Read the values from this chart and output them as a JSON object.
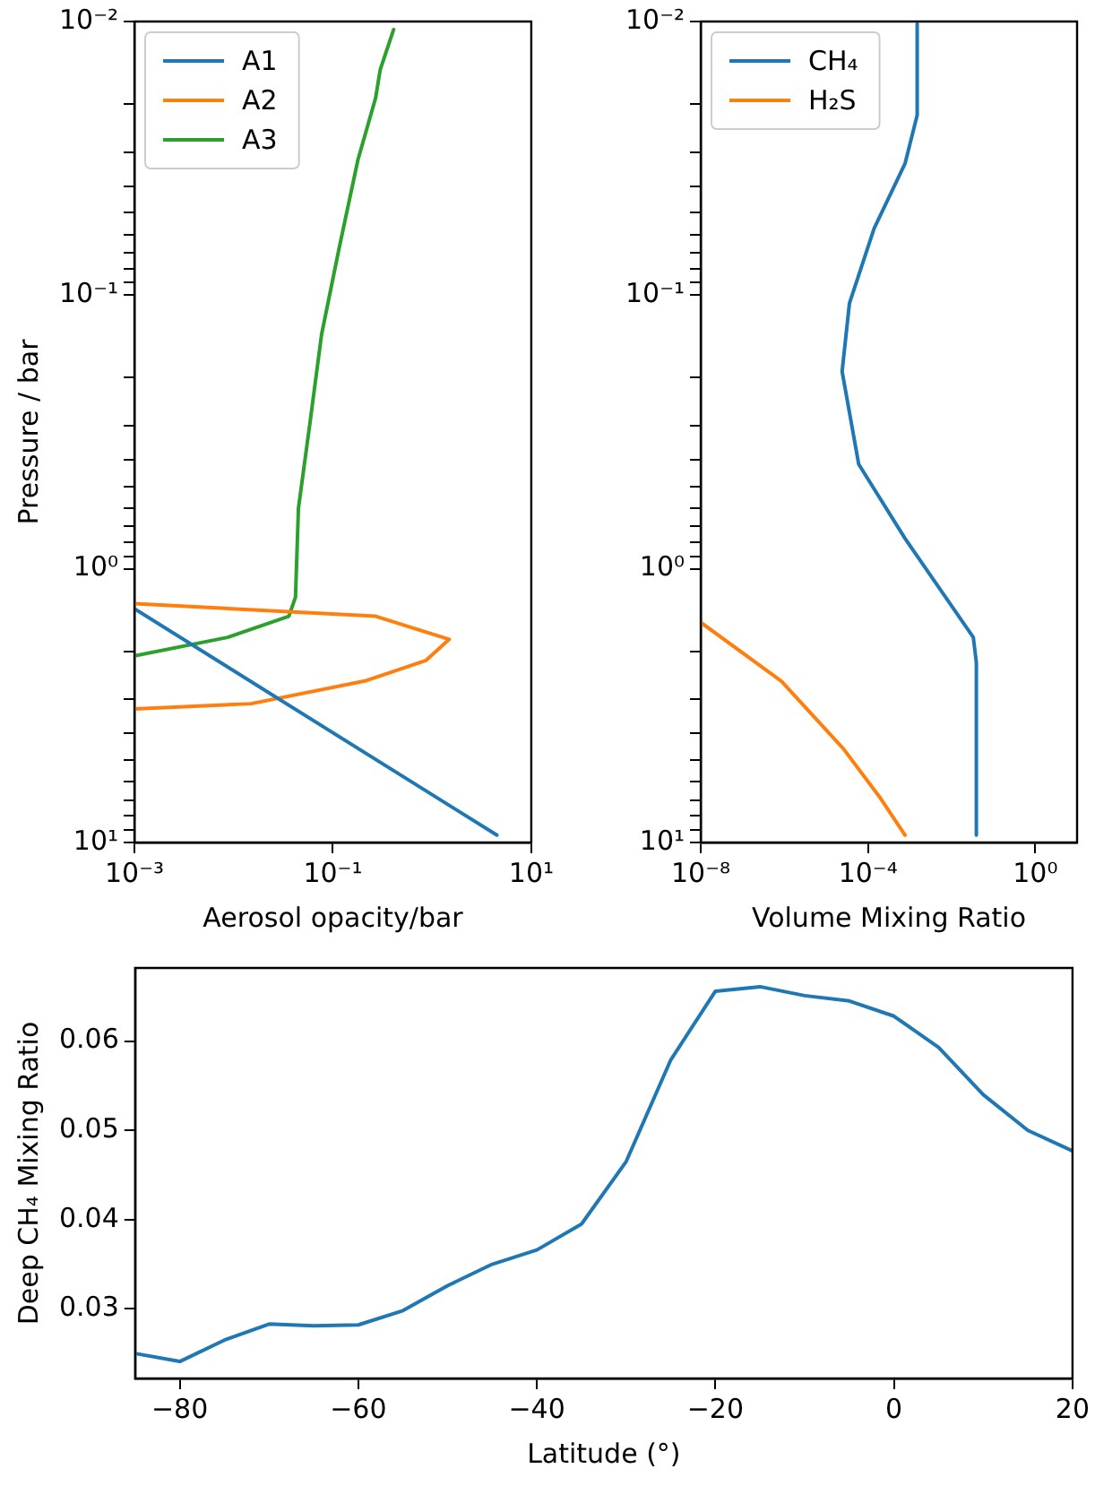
{
  "chart_data": [
    {
      "type": "line",
      "xlabel": "Aerosol opacity/bar",
      "ylabel": "Pressure / bar",
      "log": "xy",
      "legend": "top left",
      "marker": "none",
      "grid": false,
      "xlim": [
        0.001,
        10
      ],
      "xticks": [
        {
          "value": 0.001,
          "label": "10⁻³"
        },
        {
          "value": 0.1,
          "label": "10⁻¹"
        },
        {
          "value": 10,
          "label": "10¹"
        }
      ],
      "ylim": [
        10,
        0.01
      ],
      "yticks": [
        {
          "value": 0.01,
          "label": "10⁻²"
        },
        {
          "value": 0.02,
          "label": null
        },
        {
          "value": 0.03,
          "label": null
        },
        {
          "value": 0.04,
          "label": null
        },
        {
          "value": 0.05,
          "label": null
        },
        {
          "value": 0.06,
          "label": null
        },
        {
          "value": 0.07,
          "label": null
        },
        {
          "value": 0.08,
          "label": null
        },
        {
          "value": 0.09,
          "label": null
        },
        {
          "value": 0.1,
          "label": "10⁻¹"
        },
        {
          "value": 0.2,
          "label": null
        },
        {
          "value": 0.3,
          "label": null
        },
        {
          "value": 0.4,
          "label": null
        },
        {
          "value": 0.5,
          "label": null
        },
        {
          "value": 0.6,
          "label": null
        },
        {
          "value": 0.7,
          "label": null
        },
        {
          "value": 0.8,
          "label": null
        },
        {
          "value": 0.9,
          "label": null
        },
        {
          "value": 1,
          "label": "10⁰"
        },
        {
          "value": 2,
          "label": null
        },
        {
          "value": 3,
          "label": null
        },
        {
          "value": 4,
          "label": null
        },
        {
          "value": 5,
          "label": null
        },
        {
          "value": 6,
          "label": null
        },
        {
          "value": 7,
          "label": null
        },
        {
          "value": 8,
          "label": null
        },
        {
          "value": 9,
          "label": null
        },
        {
          "value": 10,
          "label": "10¹"
        }
      ],
      "series": [
        {
          "name": "A1",
          "color": "#1f77b4",
          "x": [
            0.001,
            4.5
          ],
          "values": [
            1.4,
            9.4
          ]
        },
        {
          "name": "A2",
          "color": "#ff7f0e",
          "x": [
            0.001,
            0.27,
            1.49,
            0.87,
            0.21,
            0.015,
            0.001
          ],
          "values": [
            1.34,
            1.49,
            1.81,
            2.16,
            2.57,
            3.11,
            3.25
          ]
        },
        {
          "name": "A3",
          "color": "#2ca02c",
          "x": [
            0.001,
            0.0087,
            0.036,
            0.042,
            0.045,
            0.059,
            0.077,
            0.116,
            0.179,
            0.27,
            0.3,
            0.41
          ],
          "values": [
            2.08,
            1.78,
            1.49,
            1.27,
            0.6,
            0.29,
            0.139,
            0.067,
            0.032,
            0.019,
            0.015,
            0.0107
          ]
        }
      ]
    },
    {
      "type": "line",
      "xlabel": "Volume Mixing Ratio",
      "log": "xy",
      "legend": "top left",
      "marker": "none",
      "grid": false,
      "xlim": [
        1e-08,
        10
      ],
      "xticks": [
        {
          "value": 1e-08,
          "label": "10⁻⁸"
        },
        {
          "value": 0.0001,
          "label": "10⁻⁴"
        },
        {
          "value": 1,
          "label": "10⁰"
        }
      ],
      "ylim": [
        10,
        0.01
      ],
      "yticks": [
        {
          "value": 0.01,
          "label": "10⁻²"
        },
        {
          "value": 0.02,
          "label": null
        },
        {
          "value": 0.03,
          "label": null
        },
        {
          "value": 0.04,
          "label": null
        },
        {
          "value": 0.05,
          "label": null
        },
        {
          "value": 0.06,
          "label": null
        },
        {
          "value": 0.07,
          "label": null
        },
        {
          "value": 0.08,
          "label": null
        },
        {
          "value": 0.09,
          "label": null
        },
        {
          "value": 0.1,
          "label": "10⁻¹"
        },
        {
          "value": 0.2,
          "label": null
        },
        {
          "value": 0.3,
          "label": null
        },
        {
          "value": 0.4,
          "label": null
        },
        {
          "value": 0.5,
          "label": null
        },
        {
          "value": 0.6,
          "label": null
        },
        {
          "value": 0.7,
          "label": null
        },
        {
          "value": 0.8,
          "label": null
        },
        {
          "value": 0.9,
          "label": null
        },
        {
          "value": 1,
          "label": "10⁰"
        },
        {
          "value": 2,
          "label": null
        },
        {
          "value": 3,
          "label": null
        },
        {
          "value": 4,
          "label": null
        },
        {
          "value": 5,
          "label": null
        },
        {
          "value": 6,
          "label": null
        },
        {
          "value": 7,
          "label": null
        },
        {
          "value": 8,
          "label": null
        },
        {
          "value": 9,
          "label": null
        },
        {
          "value": 10,
          "label": "10¹"
        }
      ],
      "series": [
        {
          "name": "CH₄",
          "color": "#1f77b4",
          "x": [
            0.0015,
            0.0015,
            0.00077,
            0.00014,
            3.6e-05,
            2.4e-05,
            6e-05,
            0.00077,
            0.033,
            0.039,
            0.039
          ],
          "values": [
            0.0102,
            0.022,
            0.033,
            0.057,
            0.107,
            0.19,
            0.415,
            0.775,
            1.78,
            2.2,
            9.4
          ]
        },
        {
          "name": "H₂S",
          "color": "#ff7f0e",
          "x": [
            1e-08,
            8.4e-07,
            2.6e-05,
            0.0002,
            0.00077
          ],
          "values": [
            1.57,
            2.57,
            4.55,
            6.9,
            9.4
          ]
        }
      ]
    },
    {
      "type": "line",
      "xlabel": "Latitude (°)",
      "ylabel": "Deep CH₄ Mixing Ratio",
      "marker": "none",
      "grid": false,
      "xlim": [
        -85,
        20
      ],
      "xticks": [
        {
          "value": -80,
          "label": "−80"
        },
        {
          "value": -60,
          "label": "−60"
        },
        {
          "value": -40,
          "label": "−40"
        },
        {
          "value": -20,
          "label": "−20"
        },
        0,
        20
      ],
      "ylim": [
        0.0222,
        0.0682
      ],
      "yticks": [
        0.03,
        0.04,
        0.05,
        0.06
      ],
      "series": [
        {
          "color": "#1f77b4",
          "x": [
            -85,
            -80,
            -75,
            -70,
            -65,
            -60,
            -55,
            -50,
            -45,
            -40,
            -35,
            -30,
            -25,
            -20,
            -15,
            -10,
            -5,
            0,
            5,
            10,
            15,
            20
          ],
          "values": [
            0.025,
            0.0241,
            0.0265,
            0.0283,
            0.0281,
            0.0282,
            0.0298,
            0.0326,
            0.035,
            0.0366,
            0.0395,
            0.0465,
            0.0579,
            0.0656,
            0.0661,
            0.0651,
            0.0645,
            0.0628,
            0.0593,
            0.054,
            0.05,
            0.0477
          ]
        }
      ]
    }
  ]
}
